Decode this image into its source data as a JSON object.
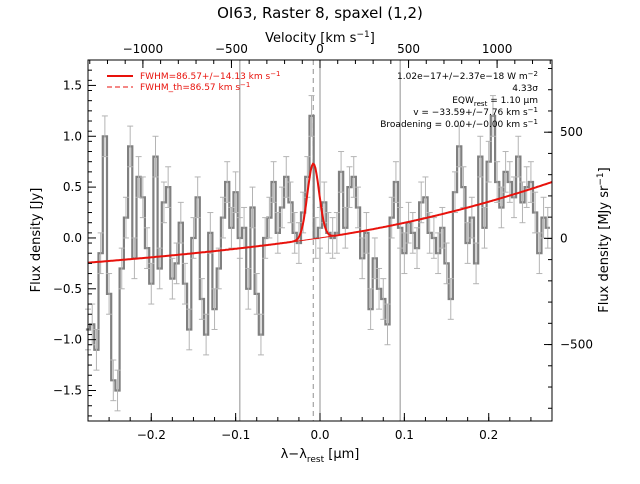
{
  "chart_data": {
    "type": "line",
    "title": "OI63, Raster 8, spaxel (1,2)",
    "xlabel": "λ−λ",
    "xlabel_sub": "rest",
    "xlabel_unit": " [μm]",
    "ylabel": "Flux density [Jy]",
    "top_axis_label": "Velocity [km s",
    "top_axis_sup": "−1",
    "top_axis_close": "]",
    "right_axis_label": "Flux density [MJy sr",
    "right_axis_sup": "−1",
    "right_axis_close": "]",
    "xlim": [
      -0.275,
      0.275
    ],
    "ylim": [
      -1.8,
      1.75
    ],
    "top_xlim": [
      -1310,
      1310
    ],
    "right_ylim": [
      -860,
      840
    ],
    "x_ticks": [
      -0.2,
      -0.1,
      0.0,
      0.1,
      0.2
    ],
    "x_tick_labels": [
      "−0.2",
      "−0.1",
      "0.0",
      "0.1",
      "0.2"
    ],
    "y_ticks": [
      -1.5,
      -1.0,
      -0.5,
      0.0,
      0.5,
      1.0,
      1.5
    ],
    "y_tick_labels": [
      "−1.5",
      "−1.0",
      "−0.5",
      "0.0",
      "0.5",
      "1.0",
      "1.5"
    ],
    "top_ticks": [
      -1000,
      -500,
      0,
      500,
      1000
    ],
    "top_tick_labels": [
      "−1000",
      "−500",
      "0",
      "500",
      "1000"
    ],
    "right_ticks": [
      -500,
      0,
      500
    ],
    "right_tick_labels": [
      "−500",
      "0",
      "500"
    ],
    "vlines_solid": [
      -0.095,
      0.0,
      0.095
    ],
    "vline_dashed": -0.008,
    "legend": [
      {
        "label": "FWHM=86.57+/−14.13 km s",
        "sup": "−1",
        "style": "solid"
      },
      {
        "label": "FWHM_th=86.57 km s",
        "sup": "−1",
        "style": "dashed"
      }
    ],
    "annotations": [
      {
        "text": "1.02e−17+/−2.37e−18 W m",
        "sup": "−2"
      },
      {
        "text": "4.33σ"
      },
      {
        "text": "EQW",
        "sub": "rest",
        "after": " = 1.10 μm"
      },
      {
        "text": "v = −33.59+/−7.76 km s",
        "sup": "−1"
      },
      {
        "text": "Broadening = 0.00+/−0.00 km s",
        "sup": "−1"
      }
    ],
    "colors": {
      "data": "#808080",
      "fit": "#e8120c",
      "axes": "#000000",
      "vlines": "#909090"
    },
    "series": [
      {
        "x": [
          -0.275,
          -0.27,
          -0.265,
          -0.26,
          -0.255,
          -0.25,
          -0.245,
          -0.24,
          -0.235,
          -0.23,
          -0.225,
          -0.22,
          -0.215,
          -0.21,
          -0.205,
          -0.2,
          -0.195,
          -0.19,
          -0.185,
          -0.18,
          -0.175,
          -0.17,
          -0.165,
          -0.16,
          -0.155,
          -0.15,
          -0.145,
          -0.14,
          -0.135,
          -0.13,
          -0.125,
          -0.12,
          -0.115,
          -0.11,
          -0.105,
          -0.1,
          -0.095,
          -0.09,
          -0.085,
          -0.08,
          -0.075,
          -0.07,
          -0.065,
          -0.06,
          -0.055,
          -0.05,
          -0.045,
          -0.04,
          -0.035,
          -0.03,
          -0.025,
          -0.02,
          -0.015,
          -0.01,
          -0.005,
          0.0,
          0.005,
          0.01,
          0.015,
          0.02,
          0.025,
          0.03,
          0.035,
          0.04,
          0.045,
          0.05,
          0.055,
          0.06,
          0.065,
          0.07,
          0.075,
          0.08,
          0.085,
          0.09,
          0.095,
          0.1,
          0.105,
          0.11,
          0.115,
          0.12,
          0.125,
          0.13,
          0.135,
          0.14,
          0.145,
          0.15,
          0.155,
          0.16,
          0.165,
          0.17,
          0.175,
          0.18,
          0.185,
          0.19,
          0.195,
          0.2,
          0.205,
          0.21,
          0.215,
          0.22,
          0.225,
          0.23,
          0.235,
          0.24,
          0.245,
          0.25,
          0.255,
          0.26,
          0.265,
          0.27
        ],
        "y": [
          -0.9,
          -0.85,
          -1.1,
          -0.15,
          1.0,
          -0.55,
          -1.4,
          -1.5,
          -0.3,
          0.2,
          0.9,
          -0.2,
          0.6,
          0.4,
          -0.1,
          -0.45,
          0.8,
          -0.3,
          0.35,
          0.5,
          -0.4,
          -0.25,
          0.15,
          -0.45,
          -0.9,
          0.0,
          0.4,
          -0.6,
          -0.95,
          0.05,
          -0.7,
          -0.3,
          0.2,
          0.55,
          0.1,
          0.45,
          0.0,
          0.1,
          -0.5,
          0.3,
          -0.55,
          -0.95,
          0.0,
          0.2,
          0.55,
          0.05,
          0.3,
          0.6,
          0.35,
          0.05,
          -0.05,
          0.25,
          0.6,
          1.2,
          0.0,
          0.1,
          0.35,
          0.05,
          0.0,
          0.05,
          0.65,
          0.1,
          0.5,
          0.6,
          0.3,
          -0.2,
          0.05,
          -0.7,
          -0.2,
          -0.5,
          -0.6,
          -0.85,
          0.2,
          0.55,
          0.1,
          -0.15,
          0.15,
          0.05,
          -0.1,
          0.35,
          0.4,
          0.05,
          0.0,
          -0.15,
          0.1,
          -0.25,
          -0.6,
          0.45,
          0.9,
          0.5,
          -0.05,
          0.2,
          -0.25,
          0.8,
          0.1,
          0.75,
          1.2,
          0.55,
          0.3,
          0.65,
          0.55,
          0.4,
          0.8,
          0.35,
          0.5,
          0.55,
          0.25,
          -0.15,
          0.2,
          0.1
        ],
        "err": 0.2
      }
    ],
    "fit": {
      "continuum": "exp",
      "c0": -0.0001,
      "c1_left": 0.23,
      "c1_right": 0.55,
      "peak_x": -0.008,
      "peak_amp": 0.74,
      "sigma": 0.007
    }
  }
}
